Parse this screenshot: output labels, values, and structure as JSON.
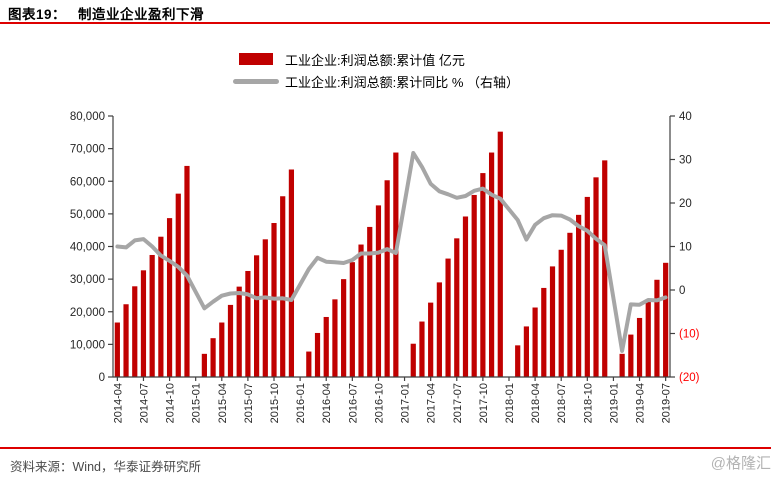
{
  "header": {
    "label": "图表19：",
    "title": "制造业企业盈利下滑"
  },
  "legend": [
    {
      "label": "工业企业:利润总额:累计值 亿元",
      "marker": "bar",
      "color": "#C00000"
    },
    {
      "label": "工业企业:利润总额:累计同比 % （右轴）",
      "marker": "line",
      "color": "#A6A6A6"
    }
  ],
  "chart_data": {
    "type": "bar+line",
    "title": "制造业企业盈利下滑",
    "grid": false,
    "legend_position": "top-center",
    "x_label_every": 3,
    "x": [
      "2014-04",
      "2014-05",
      "2014-06",
      "2014-07",
      "2014-08",
      "2014-09",
      "2014-10",
      "2014-11",
      "2014-12",
      "2015-01",
      "2015-02",
      "2015-03",
      "2015-04",
      "2015-05",
      "2015-06",
      "2015-07",
      "2015-08",
      "2015-09",
      "2015-10",
      "2015-11",
      "2015-12",
      "2016-01",
      "2016-02",
      "2016-03",
      "2016-04",
      "2016-05",
      "2016-06",
      "2016-07",
      "2016-08",
      "2016-09",
      "2016-10",
      "2016-11",
      "2016-12",
      "2017-01",
      "2017-02",
      "2017-03",
      "2017-04",
      "2017-05",
      "2017-06",
      "2017-07",
      "2017-08",
      "2017-09",
      "2017-10",
      "2017-11",
      "2017-12",
      "2018-01",
      "2018-02",
      "2018-03",
      "2018-04",
      "2018-05",
      "2018-06",
      "2018-07",
      "2018-08",
      "2018-09",
      "2018-10",
      "2018-11",
      "2018-12",
      "2019-01",
      "2019-02",
      "2019-03",
      "2019-04",
      "2019-05",
      "2019-06",
      "2019-07"
    ],
    "series": [
      {
        "name": "工业企业:利润总额:累计值",
        "unit": "亿元",
        "type": "bar",
        "axis": "left",
        "color": "#C00000",
        "values": [
          16700,
          22300,
          27800,
          32700,
          37400,
          43000,
          48700,
          56200,
          64700,
          null,
          7100,
          11900,
          16700,
          22100,
          27700,
          32500,
          37300,
          42200,
          47200,
          55400,
          63600,
          null,
          7800,
          13500,
          18400,
          23800,
          30000,
          35200,
          40600,
          46000,
          52600,
          60300,
          68800,
          null,
          10200,
          17000,
          22800,
          29000,
          36300,
          42500,
          49200,
          55800,
          62500,
          68800,
          75200,
          null,
          9700,
          15500,
          21300,
          27300,
          33900,
          39000,
          44200,
          49700,
          55200,
          61200,
          66400,
          null,
          7100,
          13000,
          18100,
          23800,
          29800,
          35000
        ]
      },
      {
        "name": "工业企业:利润总额:累计同比",
        "unit": "%",
        "type": "line",
        "axis": "right",
        "color": "#A6A6A6",
        "values": [
          10,
          9.8,
          11.4,
          11.7,
          10,
          7.9,
          6.7,
          5.3,
          3.3,
          null,
          -4.2,
          -2.7,
          -1.3,
          -0.8,
          -0.7,
          -1,
          -1.9,
          -1.7,
          -2,
          -1.9,
          -2.3,
          null,
          4.8,
          7.4,
          6.5,
          6.4,
          6.2,
          6.9,
          8.4,
          8.4,
          8.6,
          9.4,
          8.5,
          null,
          31.5,
          28.3,
          24.4,
          22.7,
          22,
          21.2,
          21.6,
          22.8,
          23.3,
          21.9,
          21,
          null,
          16.1,
          11.6,
          15,
          16.5,
          17.2,
          17.1,
          16.2,
          14.7,
          13.6,
          11.8,
          10.3,
          null,
          -14,
          -3.3,
          -3.4,
          -2.3,
          -2.4,
          -1.7
        ]
      }
    ],
    "left_axis": {
      "min": 0,
      "max": 80000,
      "step": 10000,
      "tick_labels": [
        "0",
        "10,000",
        "20,000",
        "30,000",
        "40,000",
        "50,000",
        "60,000",
        "70,000",
        "80,000"
      ]
    },
    "right_axis": {
      "min": -20,
      "max": 40,
      "step": 10,
      "tick_labels": [
        "(20)",
        "(10)",
        "0",
        "10",
        "20",
        "30",
        "40"
      ],
      "negative_color": "#FF0000"
    }
  },
  "footer": {
    "source": "资料来源：Wind，华泰证券研究所",
    "watermark": "@格隆汇"
  },
  "colors": {
    "bar_red": "#C00000",
    "line_gray": "#A6A6A6",
    "rule_red": "#DD0000",
    "negative_label_red": "#FF0000",
    "axis_color": "#3f3f3f",
    "tick_text": "#262626",
    "source_gray": "#4A4A4A",
    "watermark_gray": "#B3B3B3"
  }
}
